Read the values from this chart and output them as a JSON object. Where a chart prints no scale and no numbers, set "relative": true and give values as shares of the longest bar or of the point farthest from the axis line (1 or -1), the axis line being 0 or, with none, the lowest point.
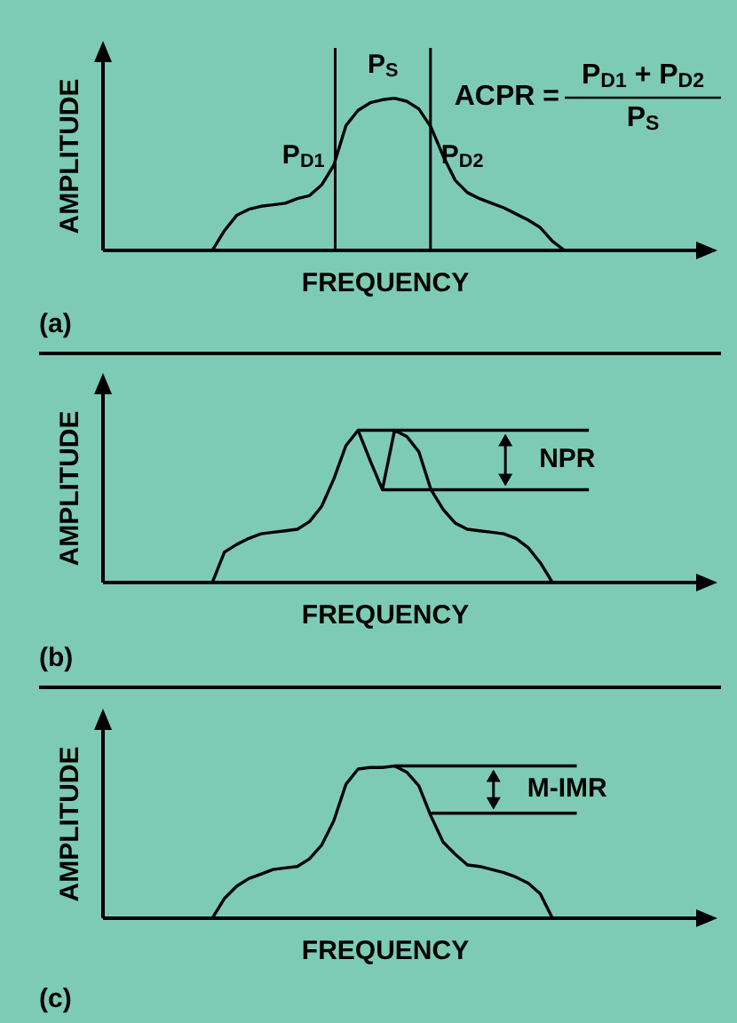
{
  "chart_data": [
    {
      "type": "line",
      "title": "(a)",
      "xlabel": "FREQUENCY",
      "ylabel": "AMPLITUDE",
      "relative": true,
      "categories": [
        null,
        null,
        null,
        null,
        null,
        null,
        null,
        null,
        null,
        null,
        null,
        null,
        null,
        null,
        null,
        null,
        null,
        null,
        null,
        null,
        null,
        null,
        null,
        null,
        null,
        null,
        null,
        null,
        null,
        null,
        null,
        null,
        null,
        null,
        null,
        null,
        null,
        null,
        null,
        null,
        null,
        null,
        null,
        null,
        null,
        null,
        null,
        null,
        null,
        null,
        null
      ],
      "series": [
        {
          "color": "#000000",
          "values": [
            null,
            null,
            null,
            null,
            null,
            null,
            null,
            null,
            null,
            0,
            0.13,
            0.23,
            0.27,
            0.29,
            0.3,
            0.31,
            0.34,
            0.36,
            0.43,
            0.56,
            0.82,
            0.92,
            0.97,
            0.99,
            1,
            0.98,
            0.93,
            0.81,
            0.62,
            0.46,
            0.38,
            0.34,
            0.31,
            0.28,
            0.24,
            0.2,
            0.15,
            0.06,
            0,
            null,
            null,
            null,
            null,
            null,
            null,
            null,
            null,
            null,
            null,
            null,
            null
          ]
        }
      ],
      "annotations": [
        "P$_{S}$",
        "P$_{D1}$",
        "P$_{D2}$",
        "ACPR =",
        "P$_{D1}$ + P$_{D2}$",
        "P$_{S}$"
      ]
    },
    {
      "type": "line",
      "title": "(b)",
      "xlabel": "FREQUENCY",
      "ylabel": "AMPLITUDE",
      "relative": true,
      "categories": [
        null,
        null,
        null,
        null,
        null,
        null,
        null,
        null,
        null,
        null,
        null,
        null,
        null,
        null,
        null,
        null,
        null,
        null,
        null,
        null,
        null,
        null,
        null,
        null,
        null,
        null,
        null,
        null,
        null,
        null,
        null,
        null,
        null,
        null,
        null,
        null,
        null,
        null,
        null,
        null,
        null,
        null,
        null,
        null,
        null,
        null,
        null,
        null,
        null,
        null,
        null
      ],
      "series": [
        {
          "color": "#000000",
          "values": [
            null,
            null,
            null,
            null,
            null,
            null,
            null,
            null,
            null,
            0,
            0.2,
            0.25,
            0.29,
            0.32,
            0.33,
            0.34,
            0.35,
            0.4,
            0.5,
            0.68,
            0.9,
            1,
            0.8,
            0.61,
            1,
            0.96,
            0.86,
            0.61,
            0.48,
            0.39,
            0.35,
            0.34,
            0.33,
            0.32,
            0.29,
            0.23,
            0.13,
            0,
            null,
            null,
            null,
            null,
            null,
            null,
            null,
            null,
            null,
            null,
            null,
            null,
            null
          ]
        },
        {
          "color": "#000000",
          "values": [
            null,
            null,
            null,
            null,
            null,
            null,
            null,
            null,
            null,
            null,
            null,
            null,
            null,
            null,
            null,
            null,
            null,
            null,
            null,
            null,
            null,
            1,
            1,
            1,
            1,
            1,
            1,
            1,
            1,
            1,
            1,
            1,
            1,
            1,
            1,
            1,
            1,
            1,
            1,
            1,
            1,
            null,
            null,
            null,
            null,
            null,
            null,
            null,
            null,
            null,
            null
          ]
        },
        {
          "color": "#000000",
          "values": [
            null,
            null,
            null,
            null,
            null,
            null,
            null,
            null,
            null,
            null,
            null,
            null,
            null,
            null,
            null,
            null,
            null,
            null,
            null,
            null,
            null,
            null,
            null,
            0.61,
            0.61,
            0.61,
            0.61,
            0.61,
            0.61,
            0.61,
            0.61,
            0.61,
            0.61,
            0.61,
            0.61,
            0.61,
            0.61,
            0.61,
            0.61,
            0.61,
            0.61,
            null,
            null,
            null,
            null,
            null,
            null,
            null,
            null,
            null,
            null
          ]
        }
      ],
      "annotations": [
        "NPR"
      ]
    },
    {
      "type": "line",
      "title": "(c)",
      "xlabel": "FREQUENCY",
      "ylabel": "AMPLITUDE",
      "relative": true,
      "categories": [
        null,
        null,
        null,
        null,
        null,
        null,
        null,
        null,
        null,
        null,
        null,
        null,
        null,
        null,
        null,
        null,
        null,
        null,
        null,
        null,
        null,
        null,
        null,
        null,
        null,
        null,
        null,
        null,
        null,
        null,
        null,
        null,
        null,
        null,
        null,
        null,
        null,
        null,
        null,
        null,
        null,
        null,
        null,
        null,
        null,
        null,
        null,
        null,
        null,
        null,
        null
      ],
      "series": [
        {
          "color": "#000000",
          "values": [
            null,
            null,
            null,
            null,
            null,
            null,
            null,
            null,
            null,
            0,
            0.13,
            0.21,
            0.26,
            0.29,
            0.32,
            0.33,
            0.34,
            0.39,
            0.48,
            0.64,
            0.88,
            0.98,
            0.99,
            0.99,
            1,
            0.96,
            0.87,
            0.67,
            0.5,
            0.42,
            0.35,
            0.34,
            0.32,
            0.3,
            0.27,
            0.23,
            0.16,
            0,
            null,
            null,
            null,
            null,
            null,
            null,
            null,
            null,
            null,
            null,
            null,
            null,
            null
          ]
        },
        {
          "color": "#000000",
          "values": [
            null,
            null,
            null,
            null,
            null,
            null,
            null,
            null,
            null,
            null,
            null,
            null,
            null,
            null,
            null,
            null,
            null,
            null,
            null,
            null,
            null,
            null,
            null,
            null,
            1,
            1,
            1,
            1,
            1,
            1,
            1,
            1,
            1,
            1,
            1,
            1,
            1,
            1,
            1,
            1,
            null,
            null,
            null,
            null,
            null,
            null,
            null,
            null,
            null,
            null,
            null
          ]
        },
        {
          "color": "#000000",
          "values": [
            null,
            null,
            null,
            null,
            null,
            null,
            null,
            null,
            null,
            null,
            null,
            null,
            null,
            null,
            null,
            null,
            null,
            null,
            null,
            null,
            null,
            null,
            null,
            null,
            null,
            null,
            null,
            0.69,
            0.69,
            0.69,
            0.69,
            0.69,
            0.69,
            0.69,
            0.69,
            0.69,
            0.69,
            0.69,
            0.69,
            0.69,
            null,
            null,
            null,
            null,
            null,
            null,
            null,
            null,
            null,
            null,
            null
          ]
        }
      ],
      "annotations": [
        "M-IMR"
      ]
    }
  ]
}
